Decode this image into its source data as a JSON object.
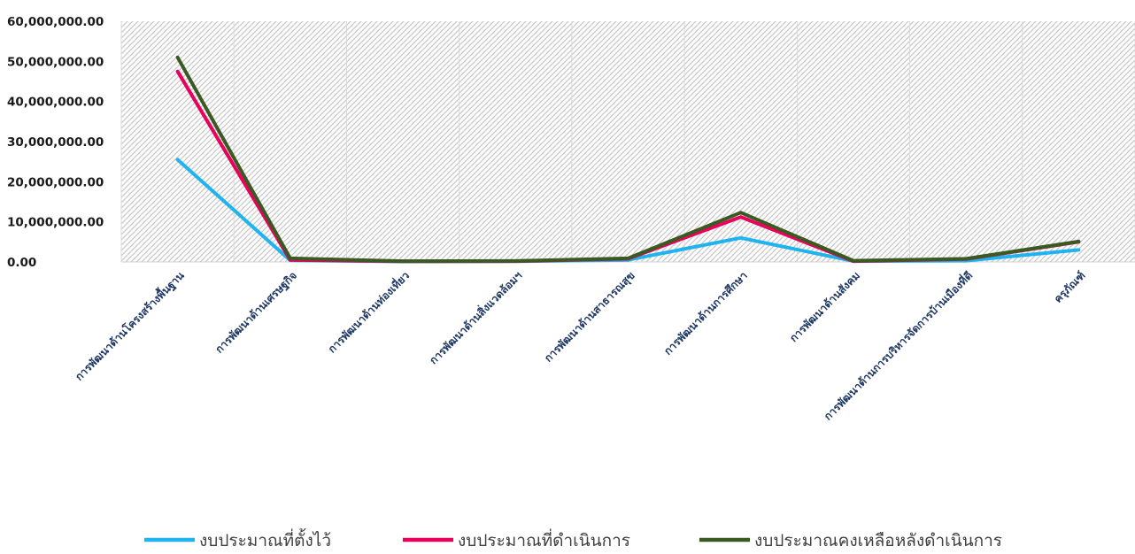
{
  "chart_data": {
    "type": "line",
    "categories": [
      "การพัฒนาด้านโครงสร้างพื้นฐาน",
      "การพัฒนาด้านเศรษฐกิจ",
      "การพัฒนาด้านท่องเที่ยว",
      "การพัฒนาด้านสิ่งแวดล้อมฯ",
      "การพัฒนาด้านสาธารณสุข",
      "การพัฒนาด้านการศึกษา",
      "การพัฒนาด้านสังคม",
      "การพัฒนาด้านการบริหารจัดการบ้านเมืองที่ดี",
      "ครุภัณฑ์"
    ],
    "series": [
      {
        "name": "งบประมาณที่ตั้งไว้",
        "color": "#1fb4ef",
        "values": [
          25500000,
          400000,
          100000,
          150000,
          500000,
          6000000,
          200000,
          300000,
          3000000
        ]
      },
      {
        "name": "งบประมาณที่ดำเนินการ",
        "color": "#e8005a",
        "values": [
          47500000,
          500000,
          150000,
          200000,
          800000,
          11200000,
          200000,
          700000,
          5000000
        ]
      },
      {
        "name": "งบประมาณคงเหลือหลังดำเนินการ",
        "color": "#3a5a22",
        "values": [
          51000000,
          900000,
          200000,
          250000,
          900000,
          12300000,
          300000,
          800000,
          5100000
        ]
      }
    ],
    "yticks": [
      "0.00",
      "10,000,000.00",
      "20,000,000.00",
      "30,000,000.00",
      "40,000,000.00",
      "50,000,000.00",
      "60,000,000.00"
    ],
    "ylim": [
      0,
      60000000
    ],
    "legend_position": "bottom",
    "plot_background": "hatched-gray"
  }
}
